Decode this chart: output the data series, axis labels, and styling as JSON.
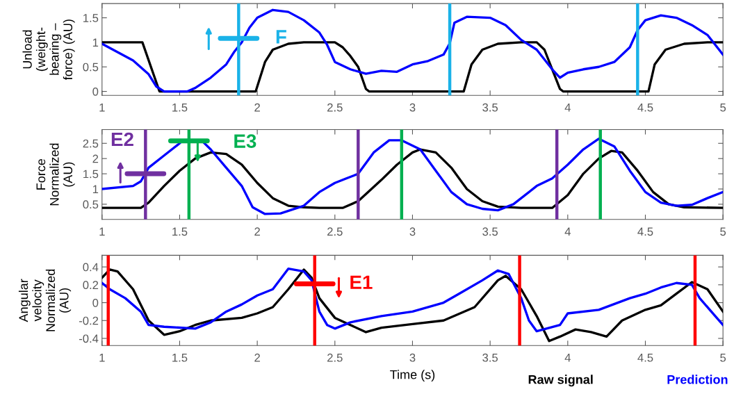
{
  "chart_data": [
    {
      "type": "line",
      "ylabel": "Unload\n(weight-\nbearing –\nforce) (AU)",
      "xlim": [
        1,
        5
      ],
      "xticks": [
        1,
        1.5,
        2,
        2.5,
        3,
        3.5,
        4,
        4.5,
        5
      ],
      "ylim": [
        -0.08,
        1.79
      ],
      "yticks": [
        0,
        0.5,
        1,
        1.5
      ],
      "grid": false,
      "series": [
        {
          "color": "#000000",
          "x": [
            1.0,
            1.26,
            1.37,
            1.99,
            2.05,
            2.1,
            2.2,
            2.3,
            2.5,
            2.55,
            2.6,
            2.65,
            2.7,
            2.72,
            3.33,
            3.38,
            3.45,
            3.55,
            3.7,
            3.8,
            3.85,
            3.9,
            3.95,
            3.97,
            4.52,
            4.56,
            4.63,
            4.75,
            4.9,
            5.0
          ],
          "values": [
            1.0,
            1.0,
            0,
            0,
            0.6,
            0.85,
            0.97,
            1.0,
            1.0,
            0.9,
            0.72,
            0.5,
            0.05,
            0,
            0,
            0.55,
            0.85,
            0.97,
            1.0,
            1.0,
            0.85,
            0.45,
            0.05,
            0,
            0,
            0.55,
            0.85,
            0.97,
            1.0,
            1.0
          ]
        },
        {
          "color": "#0000ff",
          "x": [
            1.0,
            1.1,
            1.2,
            1.3,
            1.35,
            1.4,
            1.55,
            1.6,
            1.7,
            1.8,
            1.85,
            1.9,
            1.95,
            2.0,
            2.1,
            2.2,
            2.3,
            2.4,
            2.45,
            2.5,
            2.6,
            2.7,
            2.8,
            2.9,
            3.0,
            3.1,
            3.2,
            3.24,
            3.27,
            3.35,
            3.5,
            3.6,
            3.7,
            3.8,
            3.9,
            3.95,
            4.0,
            4.1,
            4.2,
            4.3,
            4.4,
            4.45,
            4.5,
            4.6,
            4.7,
            4.8,
            4.9,
            5.0
          ],
          "values": [
            0.97,
            0.8,
            0.63,
            0.35,
            0.1,
            0.0,
            0.0,
            0.07,
            0.28,
            0.55,
            0.8,
            1.0,
            1.3,
            1.5,
            1.66,
            1.62,
            1.45,
            1.2,
            0.95,
            0.6,
            0.45,
            0.36,
            0.42,
            0.4,
            0.55,
            0.62,
            0.75,
            0.98,
            1.4,
            1.52,
            1.5,
            1.35,
            1.05,
            0.85,
            0.45,
            0.28,
            0.38,
            0.45,
            0.5,
            0.6,
            0.9,
            1.25,
            1.45,
            1.55,
            1.5,
            1.35,
            1.15,
            0.75
          ]
        }
      ],
      "ref_lines": [
        {
          "axis": "x",
          "value": 1.88,
          "color": "#1ab2e8"
        },
        {
          "axis": "x",
          "value": 3.24,
          "color": "#1ab2e8"
        },
        {
          "axis": "x",
          "value": 4.45,
          "color": "#1ab2e8"
        }
      ],
      "annotations": [
        {
          "text": "F",
          "x": 1.88,
          "y": 1.08
        }
      ]
    },
    {
      "type": "line",
      "ylabel": "Force\nNormalized\n(AU)",
      "xlim": [
        1,
        5
      ],
      "xticks": [
        1,
        1.5,
        2,
        2.5,
        3,
        3.5,
        4,
        4.5,
        5
      ],
      "ylim": [
        0,
        2.95
      ],
      "yticks": [
        0.5,
        1,
        1.5,
        2,
        2.5
      ],
      "grid": false,
      "series": [
        {
          "color": "#000000",
          "x": [
            1.0,
            1.25,
            1.3,
            1.4,
            1.5,
            1.6,
            1.7,
            1.8,
            1.9,
            2.0,
            2.1,
            2.2,
            2.3,
            2.4,
            2.55,
            2.65,
            2.8,
            2.9,
            3.0,
            3.05,
            3.15,
            3.25,
            3.35,
            3.45,
            3.55,
            3.7,
            3.9,
            4.0,
            4.1,
            4.2,
            4.28,
            4.35,
            4.45,
            4.55,
            4.65,
            4.75,
            5.0
          ],
          "values": [
            0.38,
            0.38,
            0.55,
            1.1,
            1.6,
            2.0,
            2.2,
            2.15,
            1.8,
            1.2,
            0.7,
            0.45,
            0.4,
            0.38,
            0.38,
            0.6,
            1.3,
            1.8,
            2.2,
            2.3,
            2.2,
            1.7,
            1.0,
            0.6,
            0.42,
            0.38,
            0.38,
            0.8,
            1.5,
            2.0,
            2.25,
            2.2,
            1.6,
            0.9,
            0.5,
            0.4,
            0.38
          ]
        },
        {
          "color": "#0000ff",
          "x": [
            1.0,
            1.2,
            1.25,
            1.3,
            1.4,
            1.5,
            1.55,
            1.65,
            1.7,
            1.8,
            1.9,
            1.97,
            2.05,
            2.15,
            2.3,
            2.4,
            2.5,
            2.6,
            2.65,
            2.75,
            2.85,
            2.93,
            3.05,
            3.15,
            3.25,
            3.35,
            3.45,
            3.55,
            3.65,
            3.8,
            3.9,
            4.0,
            4.1,
            4.2,
            4.3,
            4.4,
            4.5,
            4.6,
            4.7,
            4.8,
            4.9,
            5.0
          ],
          "values": [
            1.0,
            1.1,
            1.25,
            1.7,
            2.1,
            2.5,
            null,
            2.55,
            2.3,
            1.7,
            1.1,
            0.4,
            0.18,
            0.2,
            0.45,
            0.9,
            1.2,
            1.4,
            1.5,
            2.2,
            2.6,
            2.6,
            2.3,
            1.6,
            0.9,
            0.5,
            0.35,
            0.3,
            0.5,
            1.1,
            1.35,
            1.8,
            2.3,
            2.65,
            2.4,
            1.6,
            0.9,
            0.55,
            0.45,
            0.48,
            0.7,
            0.9
          ]
        }
      ],
      "ref_lines": [
        {
          "axis": "x",
          "value": 1.28,
          "color": "#7030a0"
        },
        {
          "axis": "x",
          "value": 2.65,
          "color": "#7030a0"
        },
        {
          "axis": "x",
          "value": 3.93,
          "color": "#7030a0"
        },
        {
          "axis": "x",
          "value": 1.56,
          "color": "#00b050"
        },
        {
          "axis": "x",
          "value": 2.93,
          "color": "#00b050"
        },
        {
          "axis": "x",
          "value": 4.21,
          "color": "#00b050"
        }
      ],
      "annotations": [
        {
          "text": "E2",
          "x": 1.28,
          "y": 1.5
        },
        {
          "text": "E3",
          "x": 1.56,
          "y": 2.58
        }
      ]
    },
    {
      "type": "line",
      "xlabel": "Time (s)",
      "ylabel": "Angular\nvelocity\nNormalized\n(AU)",
      "xlim": [
        1,
        5
      ],
      "xticks": [
        1,
        1.5,
        2,
        2.5,
        3,
        3.5,
        4,
        4.5,
        5
      ],
      "ylim": [
        -0.48,
        0.53
      ],
      "yticks": [
        -0.4,
        -0.2,
        0,
        0.2,
        0.4
      ],
      "grid": false,
      "legend": "bottom right",
      "series": [
        {
          "name": "Raw signal",
          "color": "#000000",
          "x": [
            1.0,
            1.05,
            1.1,
            1.2,
            1.3,
            1.4,
            1.5,
            1.6,
            1.7,
            1.9,
            2.0,
            2.1,
            2.2,
            2.3,
            2.35,
            2.4,
            2.5,
            2.6,
            2.7,
            2.8,
            3.0,
            3.2,
            3.4,
            3.55,
            3.6,
            3.7,
            3.8,
            3.88,
            3.95,
            4.05,
            4.15,
            4.25,
            4.35,
            4.5,
            4.6,
            4.7,
            4.8,
            4.9,
            5.0
          ],
          "values": [
            0.28,
            0.37,
            0.35,
            0.15,
            -0.2,
            -0.36,
            -0.32,
            -0.25,
            -0.2,
            -0.17,
            -0.12,
            -0.05,
            0.15,
            0.37,
            0.28,
            0.05,
            -0.17,
            -0.25,
            -0.33,
            -0.28,
            -0.24,
            -0.2,
            -0.05,
            0.25,
            0.3,
            0.15,
            -0.15,
            -0.43,
            -0.38,
            -0.3,
            -0.33,
            -0.38,
            -0.2,
            -0.08,
            -0.03,
            0.1,
            0.23,
            0.15,
            -0.1
          ]
        },
        {
          "name": "Prediction",
          "color": "#0000ff",
          "x": [
            1.0,
            1.05,
            1.15,
            1.25,
            1.3,
            1.4,
            1.6,
            1.7,
            1.8,
            1.9,
            2.0,
            2.1,
            2.2,
            2.3,
            2.35,
            2.4,
            2.45,
            2.5,
            2.6,
            2.8,
            3.0,
            3.2,
            3.3,
            3.45,
            3.55,
            3.62,
            3.7,
            3.75,
            3.8,
            3.95,
            4.0,
            4.2,
            4.4,
            4.5,
            4.6,
            4.7,
            4.8,
            4.85,
            4.95,
            5.0
          ],
          "values": [
            0.22,
            0.15,
            0.05,
            -0.1,
            -0.25,
            -0.27,
            -0.29,
            -0.22,
            -0.1,
            -0.02,
            0.08,
            0.15,
            0.38,
            0.35,
            0.25,
            -0.1,
            -0.25,
            -0.29,
            -0.22,
            -0.15,
            -0.1,
            0.0,
            0.1,
            0.25,
            0.36,
            0.32,
            0.05,
            -0.2,
            -0.32,
            -0.25,
            -0.12,
            -0.08,
            0.05,
            0.1,
            0.17,
            0.22,
            0.2,
            0.05,
            -0.15,
            -0.25
          ]
        }
      ],
      "ref_lines": [
        {
          "axis": "x",
          "value": 1.04,
          "color": "#ff0000"
        },
        {
          "axis": "x",
          "value": 2.37,
          "color": "#ff0000"
        },
        {
          "axis": "x",
          "value": 3.69,
          "color": "#ff0000"
        },
        {
          "axis": "x",
          "value": 4.82,
          "color": "#ff0000"
        }
      ],
      "annotations": [
        {
          "text": "E1",
          "x": 2.37,
          "y": 0.21
        }
      ]
    }
  ]
}
